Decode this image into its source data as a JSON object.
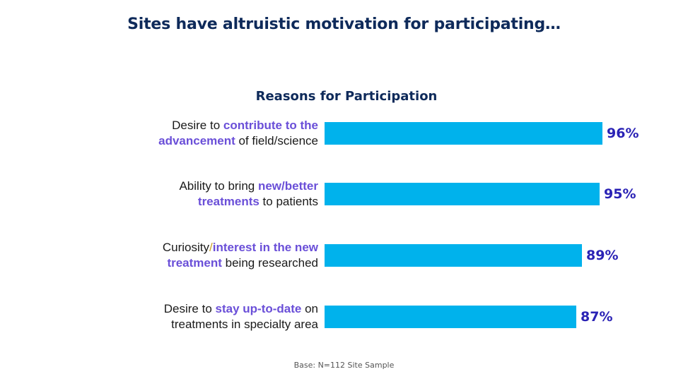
{
  "slide": {
    "title": "Sites have altruistic motivation for participating…",
    "base_note": "Base: N=112 Site Sample"
  },
  "colors": {
    "title": "#0e2a5a",
    "bar": "#00b2ec",
    "value": "#2a22b5",
    "highlight": "#6a4fd8"
  },
  "chart_data": {
    "type": "bar",
    "orientation": "horizontal",
    "title": "Reasons for Participation",
    "categories": [
      "Desire to contribute to the advancement of field/science",
      "Ability to bring new/better treatments to patients",
      "Curiosity/interest in the new treatment being researched",
      "Desire to stay up-to-date on treatments in specialty area"
    ],
    "category_parts": [
      [
        [
          {
            "t": "Desire to ",
            "h": false
          },
          {
            "t": "contribute to the",
            "h": true
          }
        ],
        [
          {
            "t": "advancement",
            "h": true
          },
          {
            "t": " of field/science",
            "h": false
          }
        ]
      ],
      [
        [
          {
            "t": "Ability to bring ",
            "h": false
          },
          {
            "t": "new/better",
            "h": true
          }
        ],
        [
          {
            "t": "treatments",
            "h": true
          },
          {
            "t": " to patients",
            "h": false
          }
        ]
      ],
      [
        [
          {
            "t": "Curiosity",
            "h": false
          },
          {
            "t": "/",
            "h": false,
            "sep": true
          },
          {
            "t": "interest in the new",
            "h": true
          }
        ],
        [
          {
            "t": "treatment",
            "h": true
          },
          {
            "t": " being researched",
            "h": false
          }
        ]
      ],
      [
        [
          {
            "t": "Desire to ",
            "h": false
          },
          {
            "t": "stay up-to-date",
            "h": true
          },
          {
            "t": " on",
            "h": false
          }
        ],
        [
          {
            "t": "treatments in specialty area",
            "h": false
          }
        ]
      ]
    ],
    "values": [
      96,
      95,
      89,
      87
    ],
    "value_labels": [
      "96%",
      "95%",
      "89%",
      "87%"
    ],
    "xlim": [
      0,
      100
    ],
    "unit": "%",
    "grid": false,
    "legend": "none"
  }
}
